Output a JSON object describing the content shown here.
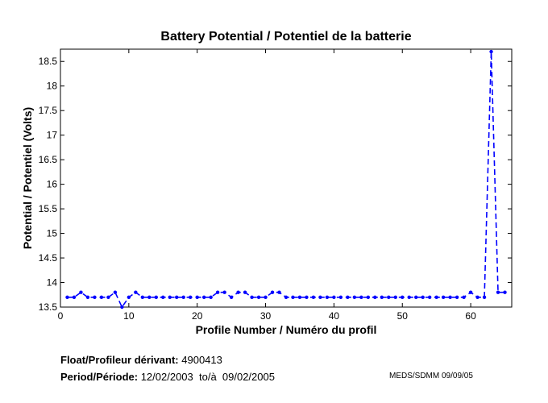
{
  "chart_data": {
    "type": "line",
    "title": "Battery Potential / Potentiel de la batterie",
    "xlabel": "Profile Number / Numéro du profil",
    "ylabel": "Potential / Potentiel (Volts)",
    "xlim": [
      0,
      66
    ],
    "ylim": [
      13.5,
      18.75
    ],
    "xticks": [
      0,
      10,
      20,
      30,
      40,
      50,
      60
    ],
    "yticks": [
      13.5,
      14,
      14.5,
      15,
      15.5,
      16,
      16.5,
      17,
      17.5,
      18,
      18.5
    ],
    "grid": false,
    "line_color": "#0000ff",
    "line_style": "dashed",
    "marker": "dot",
    "series": [
      {
        "x": [
          1,
          2,
          3,
          4,
          5,
          6,
          7,
          8,
          9,
          10,
          11,
          12,
          13,
          14,
          15,
          16,
          17,
          18,
          19,
          20,
          21,
          22,
          23,
          24,
          25,
          26,
          27,
          28,
          29,
          30,
          31,
          32,
          33,
          34,
          35,
          36,
          37,
          38,
          39,
          40,
          41,
          42,
          43,
          44,
          45,
          46,
          47,
          48,
          49,
          50,
          51,
          52,
          53,
          54,
          55,
          56,
          57,
          58,
          59,
          60,
          61,
          62,
          63,
          64,
          65
        ],
        "y": [
          13.7,
          13.7,
          13.8,
          13.7,
          13.7,
          13.7,
          13.7,
          13.8,
          13.5,
          13.7,
          13.8,
          13.7,
          13.7,
          13.7,
          13.7,
          13.7,
          13.7,
          13.7,
          13.7,
          13.7,
          13.7,
          13.7,
          13.8,
          13.8,
          13.7,
          13.8,
          13.8,
          13.7,
          13.7,
          13.7,
          13.8,
          13.8,
          13.7,
          13.7,
          13.7,
          13.7,
          13.7,
          13.7,
          13.7,
          13.7,
          13.7,
          13.7,
          13.7,
          13.7,
          13.7,
          13.7,
          13.7,
          13.7,
          13.7,
          13.7,
          13.7,
          13.7,
          13.7,
          13.7,
          13.7,
          13.7,
          13.7,
          13.7,
          13.7,
          13.8,
          13.7,
          13.7,
          18.7,
          13.8,
          13.8
        ]
      }
    ]
  },
  "info": {
    "float_label": "Float/Profileur dérivant:",
    "float_value": "4900413",
    "period_label": "Period/Période:",
    "period_value": "12/02/2003  to/à  09/02/2005",
    "credit": "MEDS/SDMM  09/09/05"
  }
}
